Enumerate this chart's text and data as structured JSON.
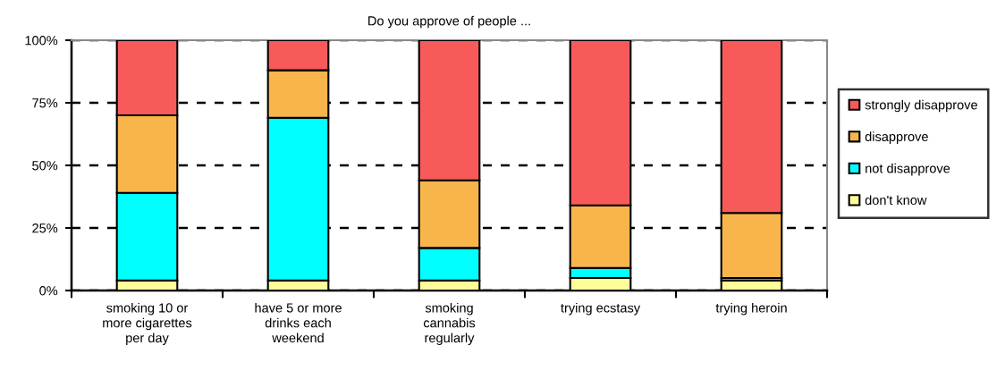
{
  "chart_data": {
    "type": "bar",
    "title": "Do you approve of people ...",
    "categories": [
      "smoking 10 or\nmore cigarettes\nper day",
      "have 5 or more\ndrinks each\nweekend",
      "smoking\ncannabis\nregularly",
      "trying ecstasy",
      "trying heroin"
    ],
    "stacked": true,
    "series": [
      {
        "name": "don't know",
        "color": "#ffff99",
        "values": [
          4,
          4,
          4,
          5,
          4
        ]
      },
      {
        "name": "not disapprove",
        "color": "#00ffff",
        "values": [
          35,
          65,
          13,
          4,
          1
        ]
      },
      {
        "name": "disapprove",
        "color": "#f8b54c",
        "values": [
          31,
          19,
          27,
          25,
          26
        ]
      },
      {
        "name": "strongly disapprove",
        "color": "#f85a5a",
        "values": [
          30,
          12,
          56,
          66,
          69
        ]
      }
    ],
    "ylim": [
      0,
      100
    ],
    "yticks": [
      {
        "value": 0,
        "label": "0%"
      },
      {
        "value": 25,
        "label": "25%"
      },
      {
        "value": 50,
        "label": "50%"
      },
      {
        "value": 75,
        "label": "75%"
      },
      {
        "value": 100,
        "label": "100%"
      }
    ],
    "grid": "y",
    "legend": "right"
  }
}
